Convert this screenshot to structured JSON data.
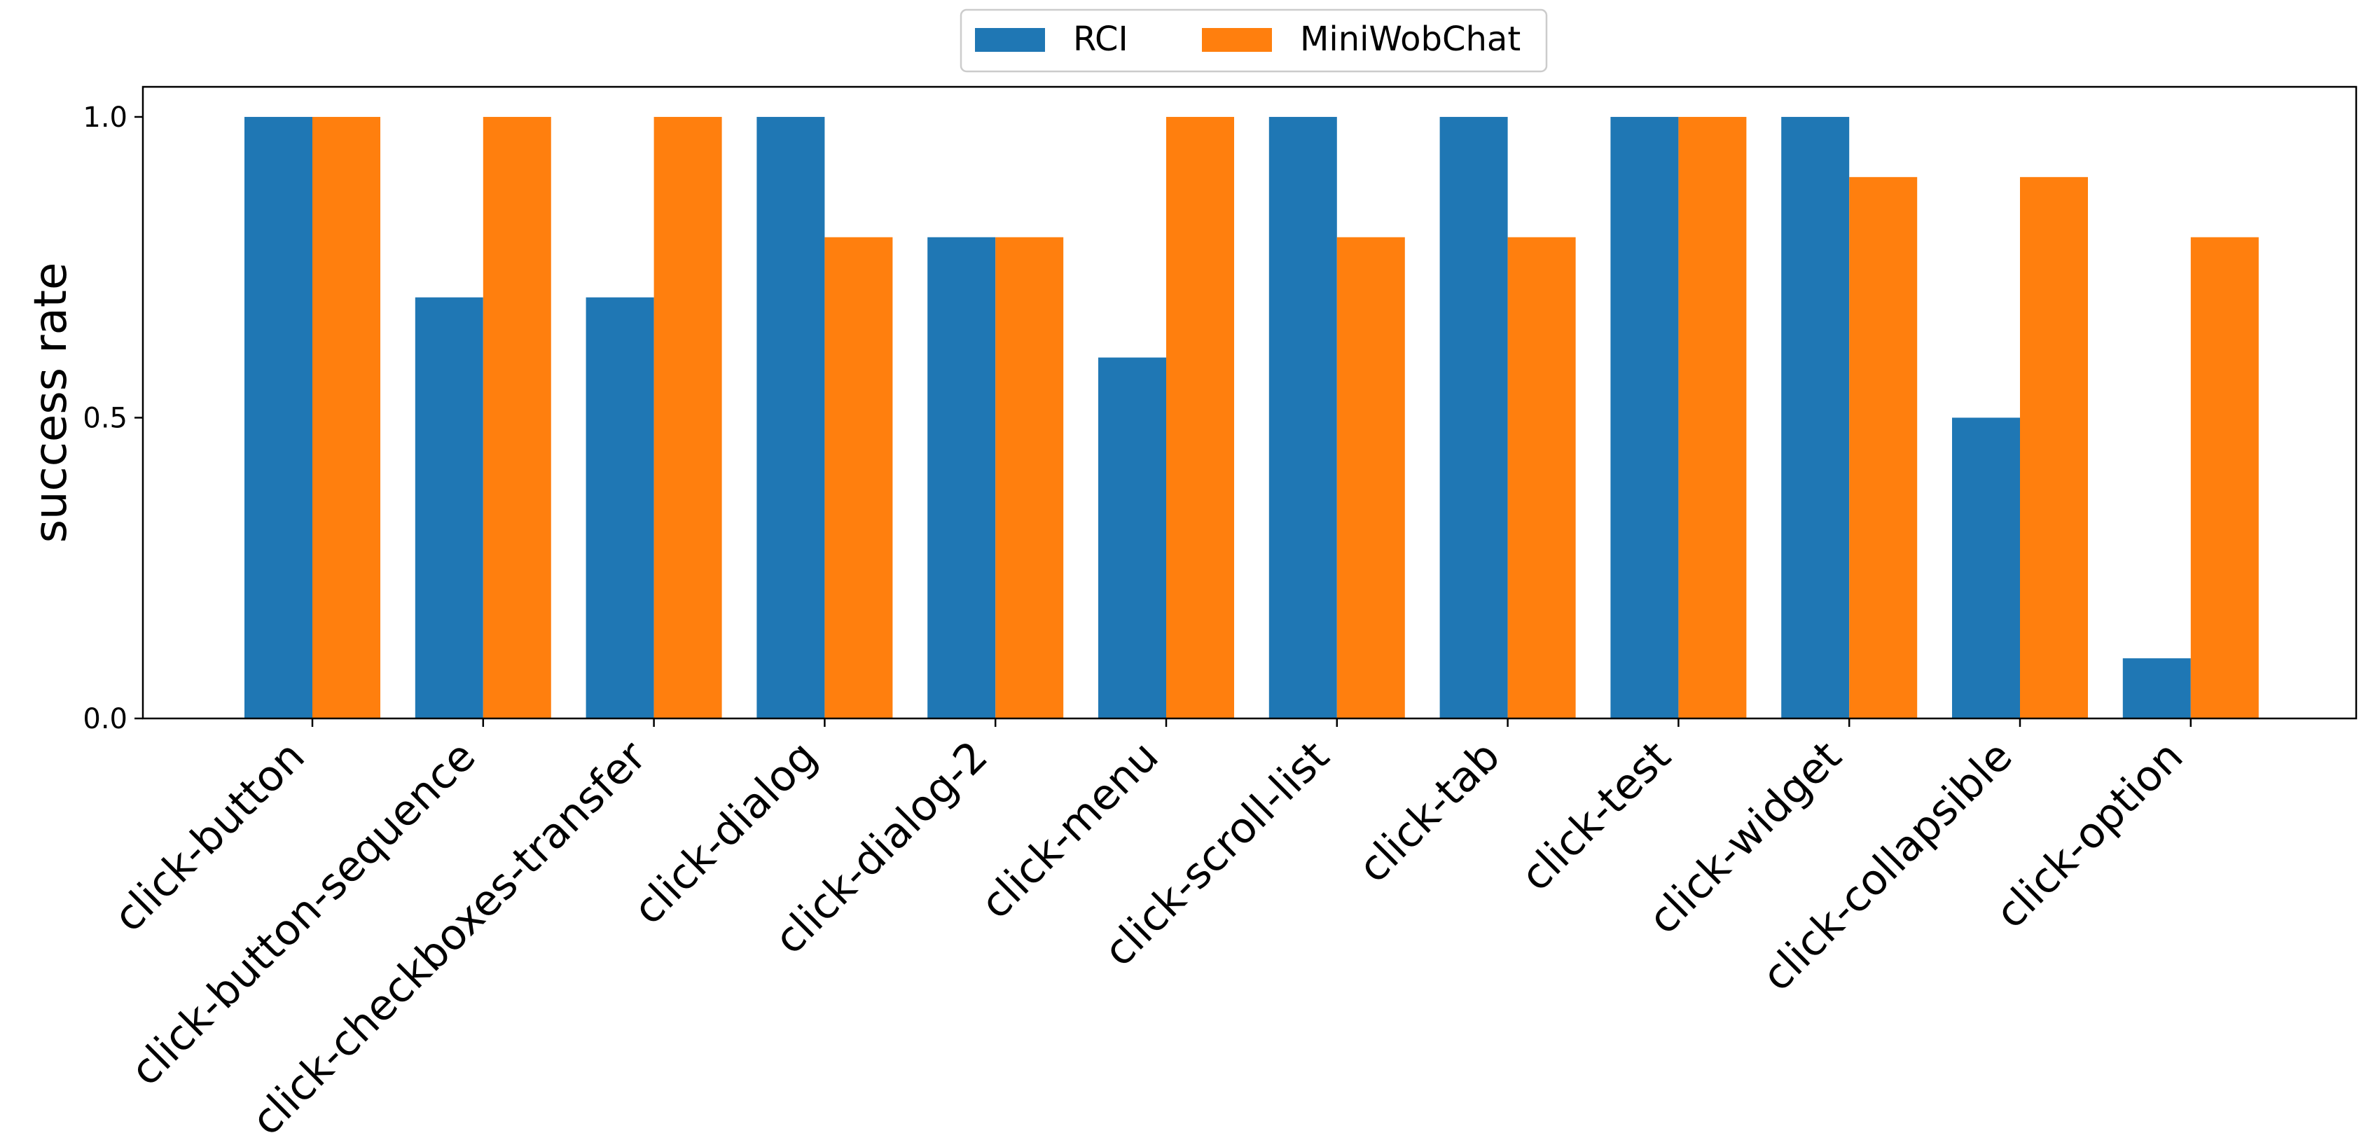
{
  "chart_data": {
    "type": "bar",
    "title": "",
    "xlabel": "",
    "ylabel": "success rate",
    "ylim": [
      0.0,
      1.05
    ],
    "yticks": [
      0.0,
      0.5,
      1.0
    ],
    "ytick_labels": [
      "0.0",
      "0.5",
      "1.0"
    ],
    "grid": false,
    "legend_placement": "top-center",
    "categories": [
      "click-button",
      "click-button-sequence",
      "click-checkboxes-transfer",
      "click-dialog",
      "click-dialog-2",
      "click-menu",
      "click-scroll-list",
      "click-tab",
      "click-test",
      "click-widget",
      "click-collapsible",
      "click-option"
    ],
    "series": [
      {
        "name": "RCI",
        "color": "#1f77b4",
        "values": [
          1.0,
          0.7,
          0.7,
          1.0,
          0.8,
          0.6,
          1.0,
          1.0,
          1.0,
          1.0,
          0.5,
          0.1
        ]
      },
      {
        "name": "MiniWobChat",
        "color": "#ff7f0e",
        "values": [
          1.0,
          1.0,
          1.0,
          0.8,
          0.8,
          1.0,
          0.8,
          0.8,
          1.0,
          0.9,
          0.9,
          0.8
        ]
      }
    ]
  }
}
